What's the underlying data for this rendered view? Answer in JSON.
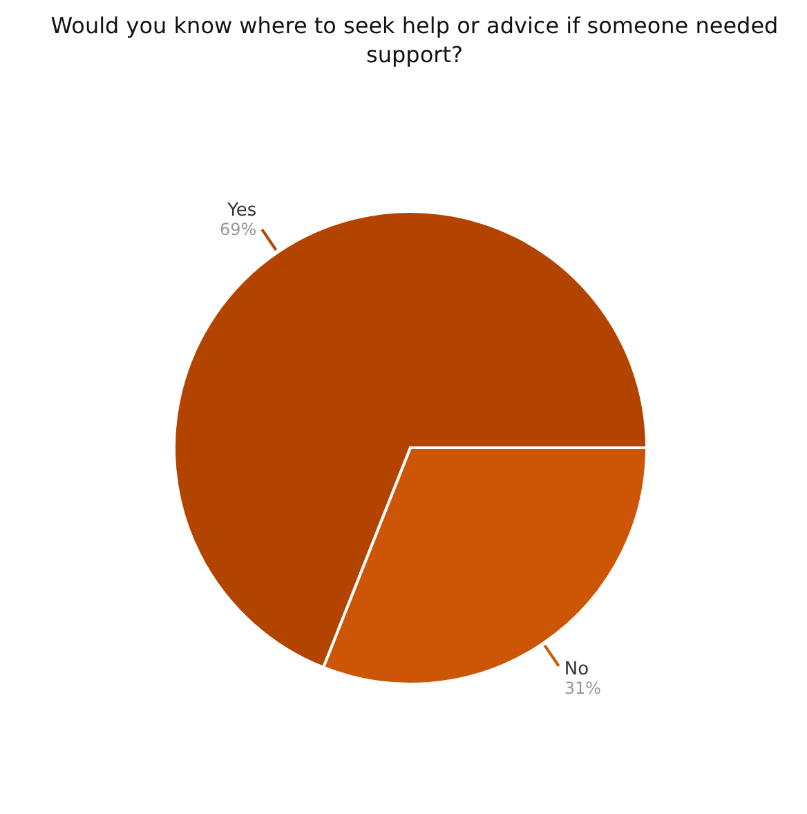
{
  "chart_data": {
    "type": "pie",
    "title": "Would you know where to seek help or advice if someone needed support?",
    "categories": [
      "Yes",
      "No"
    ],
    "values": [
      69,
      31
    ],
    "value_labels": [
      "69%",
      "31%"
    ],
    "colors": [
      "#b34400",
      "#cc5506"
    ],
    "legend": false
  }
}
